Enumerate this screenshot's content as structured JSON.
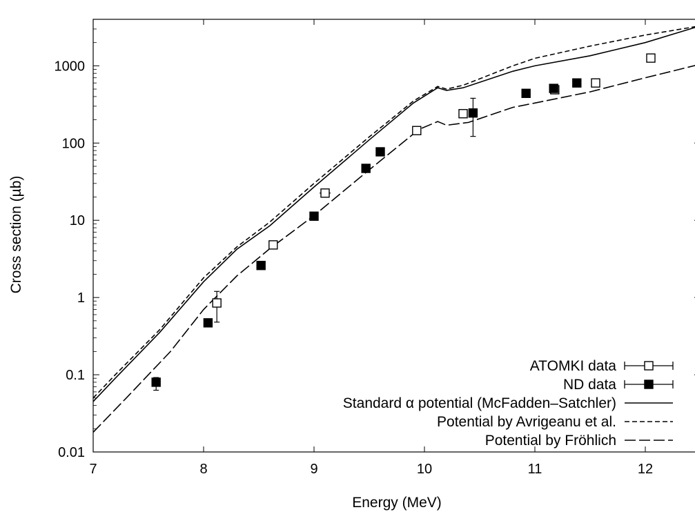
{
  "chart_data": {
    "type": "scatter",
    "title": "",
    "xlabel": "Energy (MeV)",
    "ylabel": "Cross section (µb)",
    "xlim": [
      7,
      12.5
    ],
    "ylim": [
      0.01,
      4000
    ],
    "yscale": "log",
    "grid": false,
    "legend_position": "bottom-right",
    "x_ticks": [
      7,
      8,
      9,
      10,
      11,
      12
    ],
    "x_tick_labels": [
      "7",
      "8",
      "9",
      "10",
      "11",
      "12"
    ],
    "y_ticks": [
      0.01,
      0.1,
      1,
      10,
      100,
      1000
    ],
    "y_tick_labels": [
      "0.01",
      "0.1",
      "1",
      "10",
      "100",
      "1000"
    ],
    "series": [
      {
        "name": "ATOMKI data",
        "kind": "points",
        "marker": "open-square",
        "points": [
          {
            "x": 8.12,
            "y": 0.85,
            "ylo": 0.48,
            "yhi": 1.2
          },
          {
            "x": 8.63,
            "y": 4.8
          },
          {
            "x": 9.1,
            "y": 22.5,
            "xlo": 9.05,
            "xhi": 9.15
          },
          {
            "x": 9.93,
            "y": 145
          },
          {
            "x": 10.35,
            "y": 240
          },
          {
            "x": 11.18,
            "y": 490
          },
          {
            "x": 11.55,
            "y": 600
          },
          {
            "x": 12.05,
            "y": 1260
          }
        ]
      },
      {
        "name": "ND data",
        "kind": "points",
        "marker": "filled-square",
        "points": [
          {
            "x": 7.57,
            "y": 0.08,
            "ylo": 0.063,
            "yhi": 0.092
          },
          {
            "x": 8.04,
            "y": 0.47
          },
          {
            "x": 8.52,
            "y": 2.6
          },
          {
            "x": 9.0,
            "y": 11.3
          },
          {
            "x": 9.47,
            "y": 47
          },
          {
            "x": 9.6,
            "y": 77
          },
          {
            "x": 10.44,
            "y": 245,
            "ylo": 122,
            "yhi": 380
          },
          {
            "x": 10.92,
            "y": 440
          },
          {
            "x": 11.17,
            "y": 510
          },
          {
            "x": 11.38,
            "y": 600
          }
        ]
      },
      {
        "name": "Standard α potential (McFadden–Satchler)",
        "kind": "line",
        "dash": "solid",
        "points": [
          {
            "x": 7.0,
            "y": 0.045
          },
          {
            "x": 7.2,
            "y": 0.09
          },
          {
            "x": 7.6,
            "y": 0.35
          },
          {
            "x": 8.0,
            "y": 1.6
          },
          {
            "x": 8.3,
            "y": 4.2
          },
          {
            "x": 8.6,
            "y": 8.5
          },
          {
            "x": 9.0,
            "y": 27
          },
          {
            "x": 9.5,
            "y": 110
          },
          {
            "x": 9.9,
            "y": 330
          },
          {
            "x": 10.12,
            "y": 520
          },
          {
            "x": 10.2,
            "y": 480
          },
          {
            "x": 10.35,
            "y": 520
          },
          {
            "x": 10.8,
            "y": 850
          },
          {
            "x": 11.0,
            "y": 1000
          },
          {
            "x": 11.5,
            "y": 1350
          },
          {
            "x": 12.0,
            "y": 2000
          },
          {
            "x": 12.5,
            "y": 3300
          }
        ]
      },
      {
        "name": "Potential by Avrigeanu et al.",
        "kind": "line",
        "dash": "short-dash",
        "points": [
          {
            "x": 7.0,
            "y": 0.05
          },
          {
            "x": 7.2,
            "y": 0.1
          },
          {
            "x": 7.6,
            "y": 0.38
          },
          {
            "x": 8.0,
            "y": 1.8
          },
          {
            "x": 8.3,
            "y": 4.5
          },
          {
            "x": 8.6,
            "y": 9.5
          },
          {
            "x": 9.0,
            "y": 30
          },
          {
            "x": 9.5,
            "y": 120
          },
          {
            "x": 9.9,
            "y": 350
          },
          {
            "x": 10.12,
            "y": 540
          },
          {
            "x": 10.2,
            "y": 500
          },
          {
            "x": 10.35,
            "y": 560
          },
          {
            "x": 10.8,
            "y": 1000
          },
          {
            "x": 11.0,
            "y": 1250
          },
          {
            "x": 11.5,
            "y": 1800
          },
          {
            "x": 12.0,
            "y": 2500
          },
          {
            "x": 12.5,
            "y": 3300
          }
        ]
      },
      {
        "name": "Potential by Fröhlich",
        "kind": "line",
        "dash": "long-dash",
        "points": [
          {
            "x": 7.0,
            "y": 0.018
          },
          {
            "x": 7.3,
            "y": 0.05
          },
          {
            "x": 7.7,
            "y": 0.2
          },
          {
            "x": 8.0,
            "y": 0.7
          },
          {
            "x": 8.3,
            "y": 1.9
          },
          {
            "x": 8.6,
            "y": 4.3
          },
          {
            "x": 9.0,
            "y": 11.5
          },
          {
            "x": 9.5,
            "y": 45
          },
          {
            "x": 9.95,
            "y": 150
          },
          {
            "x": 10.12,
            "y": 190
          },
          {
            "x": 10.2,
            "y": 170
          },
          {
            "x": 10.4,
            "y": 185
          },
          {
            "x": 10.8,
            "y": 290
          },
          {
            "x": 11.0,
            "y": 330
          },
          {
            "x": 11.5,
            "y": 460
          },
          {
            "x": 12.0,
            "y": 700
          },
          {
            "x": 12.5,
            "y": 1050
          }
        ]
      }
    ]
  }
}
